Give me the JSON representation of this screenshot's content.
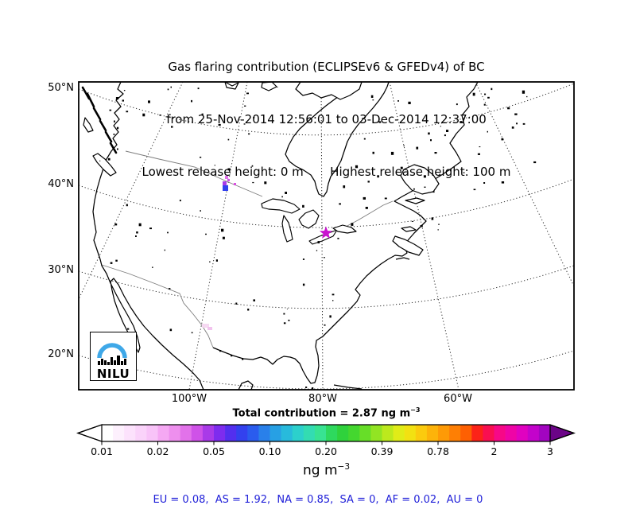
{
  "title": {
    "line1": "Gas flaring contribution (ECLIPSEv6 & GFEDv4) of BC",
    "line2": "from 25-Nov-2014 12:56:01 to 03-Dec-2014 12:37:00",
    "line3": "Lowest release height: 0 m       Highest release height: 100 m"
  },
  "map": {
    "lat_labels": [
      "50°N",
      "40°N",
      "30°N",
      "20°N"
    ],
    "lon_labels": [
      "100°W",
      "80°W",
      "60°W"
    ],
    "logo_text": "NILU",
    "logo_arc_color": "#3FA8E8",
    "release_marker_color": "#c913cf"
  },
  "annotation": {
    "total_text": "Total contribution = 2.87 ng m",
    "total_sup": "−3"
  },
  "colorbar": {
    "ticks": [
      "0.01",
      "0.02",
      "0.05",
      "0.10",
      "0.20",
      "0.39",
      "0.78",
      "2",
      "3"
    ],
    "unit_text": "ng m",
    "unit_sup": "−3",
    "left_arrow_color": "#ffffff",
    "right_arrow_color": "#6b0487",
    "segment_colors": [
      "#ffffff",
      "#fdf0fd",
      "#fce2fc",
      "#fad3fa",
      "#f8c3f8",
      "#f5a8f3",
      "#ee8fee",
      "#e272ea",
      "#cf52e8",
      "#a93ae8",
      "#7e2cee",
      "#532fee",
      "#3341ee",
      "#2a5cee",
      "#2980ea",
      "#27a0e4",
      "#28badc",
      "#2cd0cc",
      "#33dcb2",
      "#38e392",
      "#2ed95e",
      "#2fd23c",
      "#44d72f",
      "#67de28",
      "#92e423",
      "#bce91d",
      "#e0ec18",
      "#f2e112",
      "#fbcb0e",
      "#fdb30a",
      "#fe9a06",
      "#fe7f04",
      "#fe6002",
      "#fc2318",
      "#f90f50",
      "#f70887",
      "#ef04a6",
      "#e002c0",
      "#c303cb",
      "#a205c0"
    ]
  },
  "footer": {
    "text": "EU = 0.08,  AS = 1.92,  NA = 0.85,  SA = 0,  AF = 0.02,  AU = 0",
    "color": "#2121d9"
  },
  "chart_data": {
    "type": "map",
    "title": "Gas flaring contribution (ECLIPSEv6 & GFEDv4) of BC",
    "period_start": "25-Nov-2014 12:56:01",
    "period_end": "03-Dec-2014 12:37:00",
    "lowest_release_height_m": 0,
    "highest_release_height_m": 100,
    "total_contribution_ng_m3": 2.87,
    "colorbar_scale_ng_m3": [
      0.01,
      0.02,
      0.05,
      0.1,
      0.2,
      0.39,
      0.78,
      2,
      3
    ],
    "region_contributions_ng_m3": {
      "EU": 0.08,
      "AS": 1.92,
      "NA": 0.85,
      "SA": 0,
      "AF": 0.02,
      "AU": 0
    },
    "lat_labels_deg_n": [
      50,
      40,
      30,
      20
    ],
    "lon_labels_deg_w": [
      100,
      80,
      60
    ],
    "legend_position": "bottom-horizontal-colorbar",
    "grid": "dotted-graticule"
  }
}
